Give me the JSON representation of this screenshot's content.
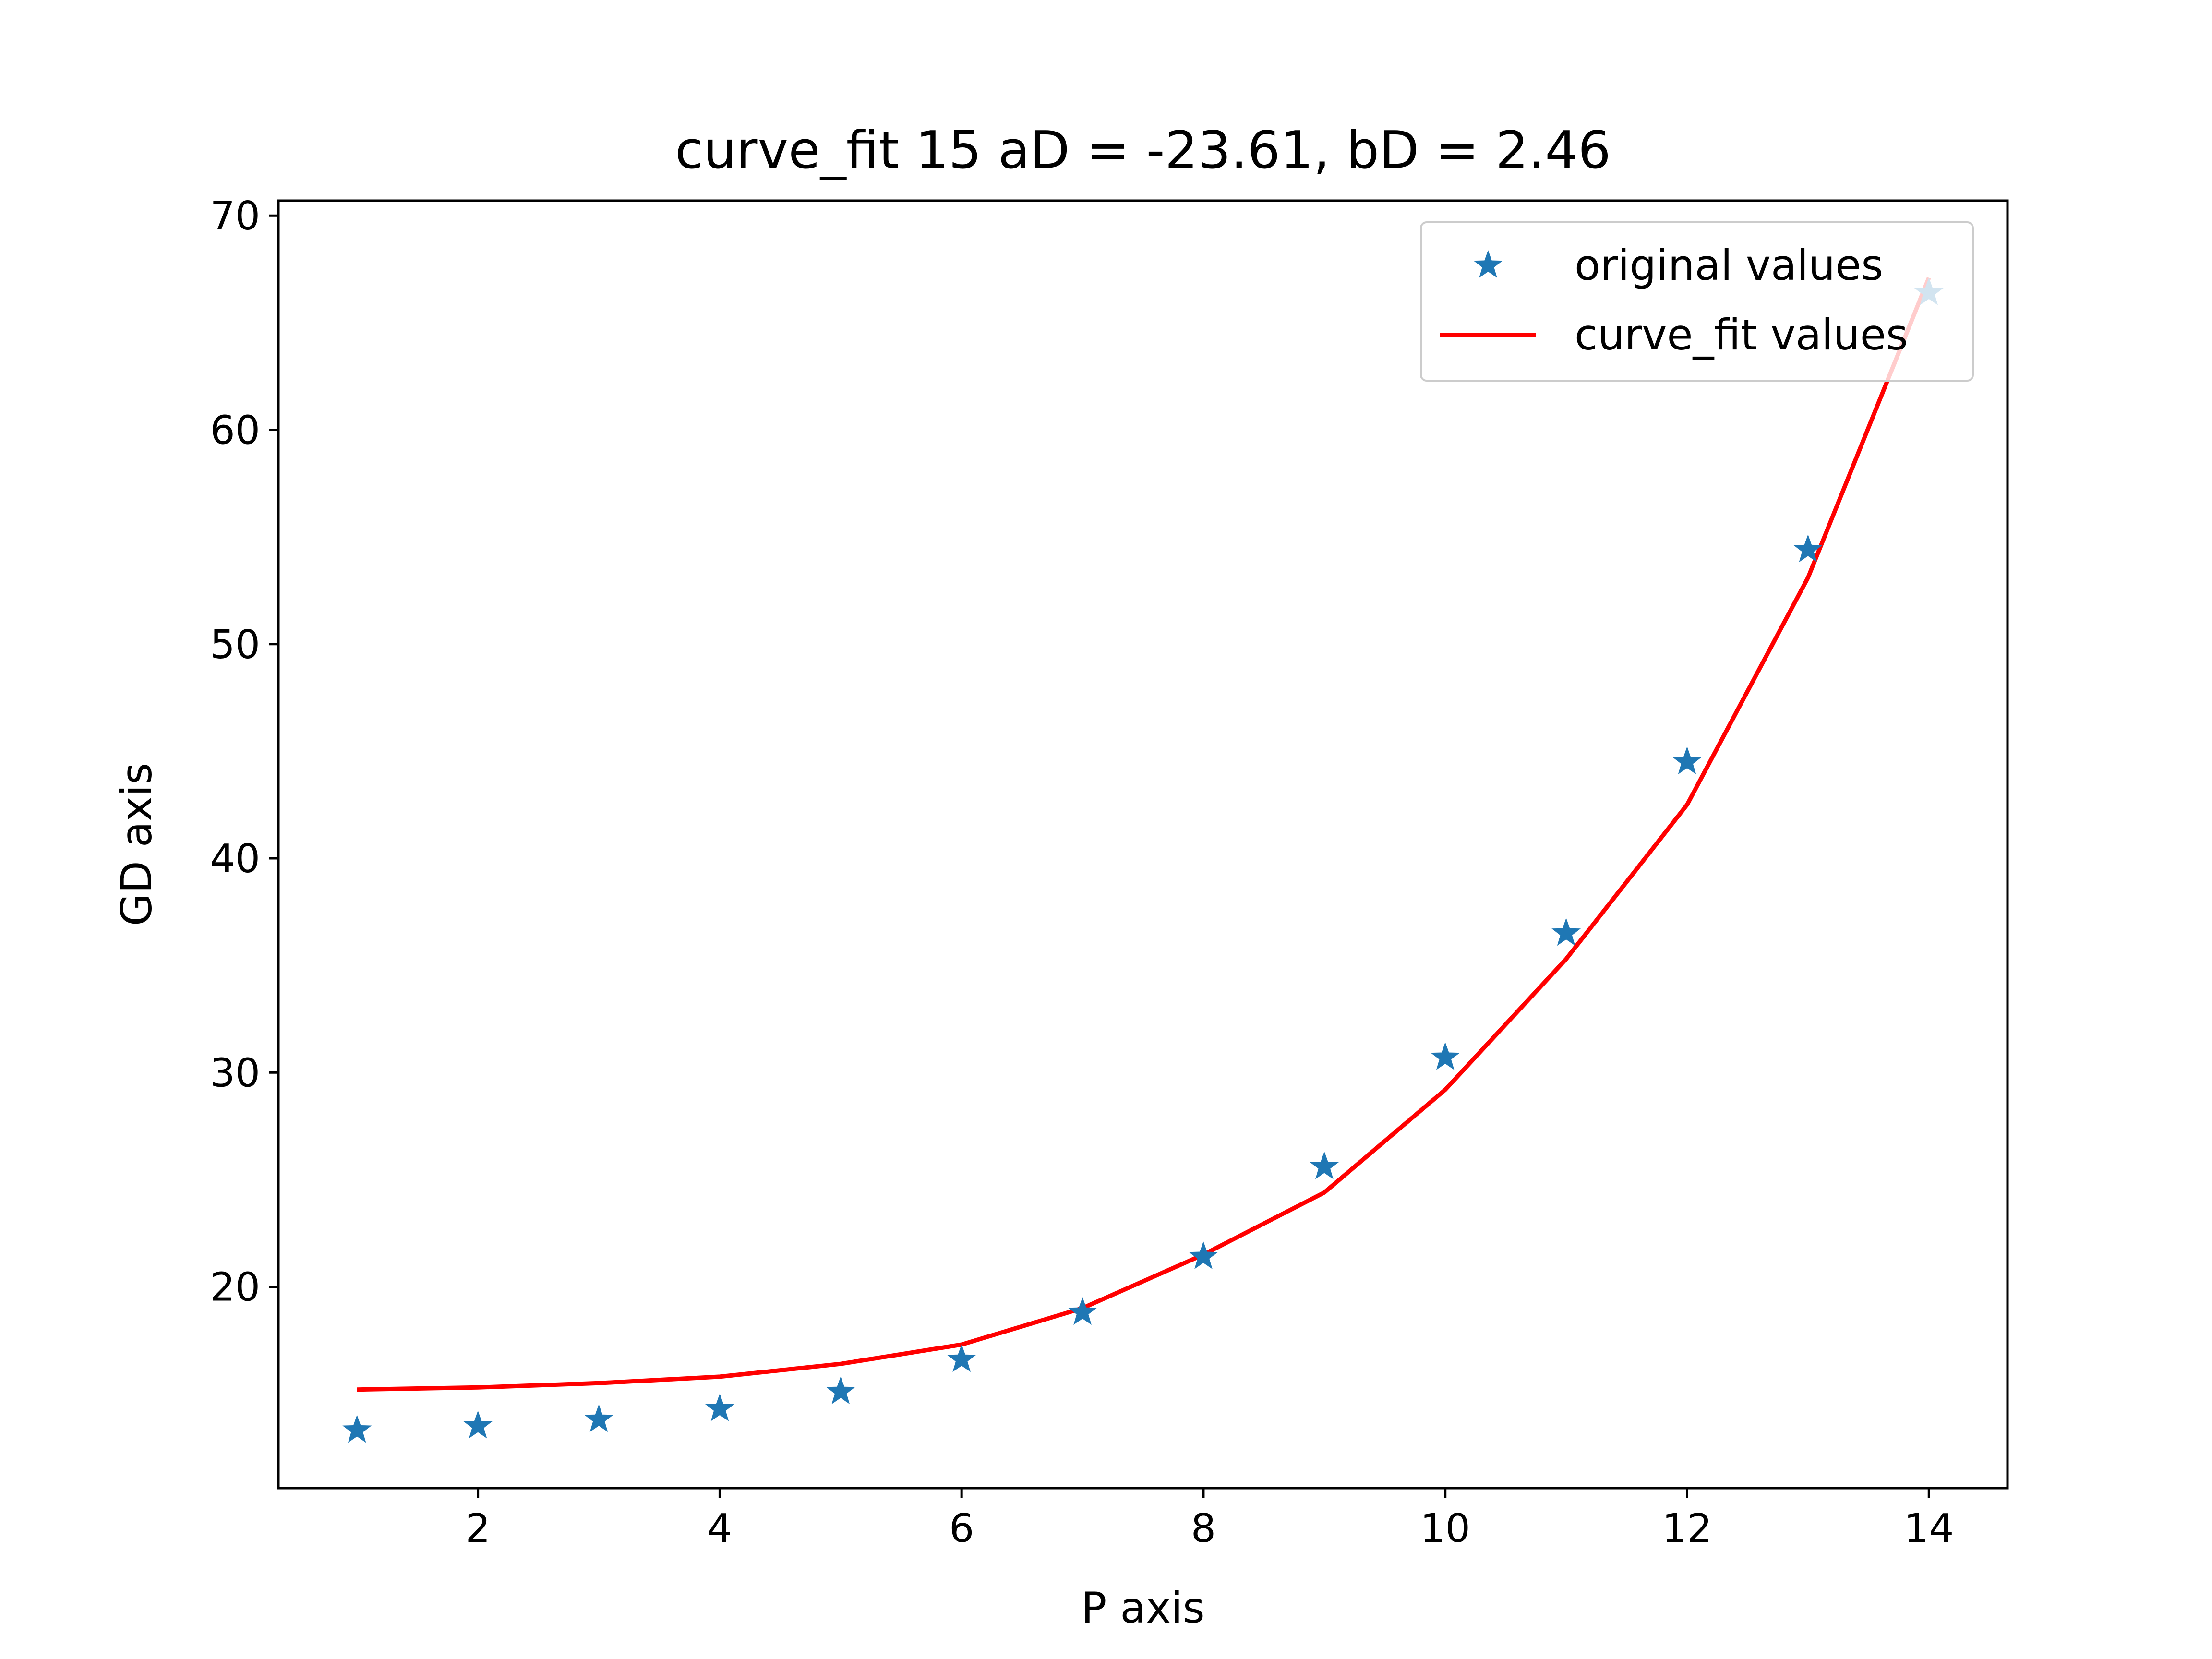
{
  "chart_data": {
    "type": "scatter",
    "title": "curve_fit 15 aD = -23.61, bD = 2.46",
    "xlabel": "P axis",
    "ylabel": "GD axis",
    "xlim": [
      0.35,
      14.65
    ],
    "ylim": [
      10.6,
      70.7
    ],
    "xticks": [
      2,
      4,
      6,
      8,
      10,
      12,
      14
    ],
    "yticks": [
      20,
      30,
      40,
      50,
      60,
      70
    ],
    "grid": false,
    "legend_position": "upper-right",
    "series": [
      {
        "name": "original values",
        "kind": "markers",
        "marker": "star",
        "color": "#1f77b4",
        "x": [
          1,
          2,
          3,
          4,
          5,
          6,
          7,
          8,
          9,
          10,
          11,
          12,
          13,
          14
        ],
        "y": [
          13.3,
          13.5,
          13.8,
          14.3,
          15.1,
          16.6,
          18.8,
          21.4,
          25.6,
          30.7,
          36.5,
          44.5,
          54.4,
          66.4
        ]
      },
      {
        "name": "curve_fit values",
        "kind": "line",
        "color": "#ff0000",
        "x": [
          1,
          2,
          3,
          4,
          5,
          6,
          7,
          8,
          9,
          10,
          11,
          12,
          13,
          14
        ],
        "y": [
          15.2,
          15.3,
          15.5,
          15.8,
          16.4,
          17.3,
          19.0,
          21.5,
          24.4,
          29.2,
          35.3,
          42.5,
          53.1,
          67.1
        ]
      }
    ]
  }
}
